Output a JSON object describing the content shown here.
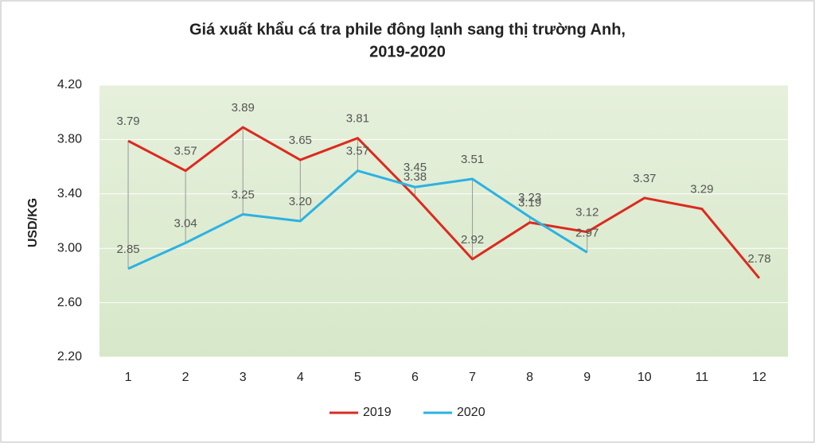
{
  "chart_data": {
    "type": "line",
    "title": [
      "Giá xuất khẩu cá tra phile  đông lạnh sang thị trường Anh,",
      "2019-2020"
    ],
    "y_label": "USD/KG",
    "categories": [
      "1",
      "2",
      "3",
      "4",
      "5",
      "6",
      "7",
      "8",
      "9",
      "10",
      "11",
      "12"
    ],
    "series": [
      {
        "name": "2019",
        "color": "#dc2a1f",
        "values": [
          3.79,
          3.57,
          3.89,
          3.65,
          3.81,
          3.38,
          2.92,
          3.19,
          3.12,
          3.37,
          3.29,
          2.78
        ],
        "value_labels": [
          "3.79",
          "3.57",
          "3.89",
          "3.65",
          "3.81",
          "3.38",
          "2.92",
          "3.19",
          "3.12",
          "3.37",
          "3.29",
          "2.78"
        ]
      },
      {
        "name": "2020",
        "color": "#2cb2e2",
        "values": [
          2.85,
          3.04,
          3.25,
          3.2,
          3.57,
          3.45,
          3.51,
          3.23,
          2.97,
          null,
          null,
          null
        ],
        "value_labels": [
          "2.85",
          "3.04",
          "3.25",
          "3.20",
          "3.57",
          "3.45",
          "3.51",
          "3.23",
          "2.97",
          null,
          null,
          null
        ]
      }
    ],
    "ylim": [
      2.2,
      4.2
    ],
    "yticks": [
      {
        "value": 2.2,
        "label": "2.20"
      },
      {
        "value": 2.6,
        "label": "2.60"
      },
      {
        "value": 3.0,
        "label": "3.00"
      },
      {
        "value": 3.4,
        "label": "3.40"
      },
      {
        "value": 3.8,
        "label": "3.80"
      },
      {
        "value": 4.2,
        "label": "4.20"
      }
    ],
    "grid": true,
    "high_low_lines": true,
    "legend": "bottom"
  }
}
